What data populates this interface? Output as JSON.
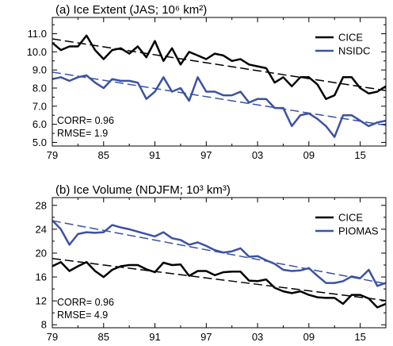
{
  "chart_data": [
    {
      "type": "line",
      "title": "(a) Ice Extent (JAS; 10⁶ km²)",
      "x": [
        1979,
        1980,
        1981,
        1982,
        1983,
        1984,
        1985,
        1986,
        1987,
        1988,
        1989,
        1990,
        1991,
        1992,
        1993,
        1994,
        1995,
        1996,
        1997,
        1998,
        1999,
        2000,
        2001,
        2002,
        2003,
        2004,
        2005,
        2006,
        2007,
        2008,
        2009,
        2010,
        2011,
        2012,
        2013,
        2014,
        2015,
        2016,
        2017,
        2018
      ],
      "xlim": [
        1979,
        2018
      ],
      "x_ticks": [
        1979,
        1985,
        1991,
        1997,
        2003,
        2009,
        2015
      ],
      "x_tick_labels": [
        "79",
        "85",
        "91",
        "97",
        "03",
        "09",
        "15"
      ],
      "ylim": [
        4.8,
        11.9
      ],
      "y_ticks": [
        5,
        6,
        7,
        8,
        9,
        10,
        11
      ],
      "y_tick_labels": [
        "5.0",
        "6.0",
        "7.0",
        "8.0",
        "9.0",
        "10.0",
        "11.0"
      ],
      "series": [
        {
          "name": "CICE",
          "color": "#000000",
          "values": [
            10.5,
            10.1,
            10.3,
            10.3,
            10.9,
            10.1,
            9.6,
            10.1,
            10.2,
            9.9,
            10.3,
            9.7,
            10.6,
            9.5,
            10.2,
            9.3,
            10.0,
            9.8,
            9.6,
            9.9,
            9.8,
            9.5,
            9.6,
            9.3,
            9.2,
            9.1,
            8.3,
            8.6,
            8.1,
            8.6,
            8.6,
            8.2,
            7.4,
            7.6,
            8.6,
            8.6,
            8.0,
            7.7,
            7.8,
            8.1
          ]
        },
        {
          "name": "NSIDC",
          "color": "#3b52a3",
          "values": [
            8.5,
            8.6,
            8.4,
            8.6,
            8.7,
            8.3,
            8.0,
            8.5,
            8.4,
            8.4,
            8.3,
            7.4,
            7.8,
            8.6,
            7.8,
            8.0,
            7.3,
            8.6,
            7.8,
            7.8,
            7.6,
            7.6,
            7.8,
            7.2,
            7.4,
            7.4,
            6.9,
            6.9,
            5.9,
            6.5,
            6.6,
            6.3,
            5.9,
            5.3,
            6.5,
            6.5,
            6.2,
            5.9,
            6.1,
            6.2
          ]
        }
      ],
      "trend_lines": true,
      "legend": "top-right",
      "annotations": [
        "CORR= 0.96",
        "RMSE= 1.9"
      ],
      "grid": false
    },
    {
      "type": "line",
      "title": "(b) Ice Volume (NDJFM; 10³ km³)",
      "x": [
        1979,
        1980,
        1981,
        1982,
        1983,
        1984,
        1985,
        1986,
        1987,
        1988,
        1989,
        1990,
        1991,
        1992,
        1993,
        1994,
        1995,
        1996,
        1997,
        1998,
        1999,
        2000,
        2001,
        2002,
        2003,
        2004,
        2005,
        2006,
        2007,
        2008,
        2009,
        2010,
        2011,
        2012,
        2013,
        2014,
        2015,
        2016,
        2017,
        2018
      ],
      "xlim": [
        1979,
        2018
      ],
      "x_ticks": [
        1979,
        1985,
        1991,
        1997,
        2003,
        2009,
        2015
      ],
      "x_tick_labels": [
        "79",
        "85",
        "91",
        "97",
        "03",
        "09",
        "15"
      ],
      "ylim": [
        7.5,
        29.3
      ],
      "y_ticks": [
        8,
        12,
        16,
        20,
        24,
        28
      ],
      "y_tick_labels": [
        "8",
        "12",
        "16",
        "20",
        "24",
        "28"
      ],
      "series": [
        {
          "name": "CICE",
          "color": "#000000",
          "values": [
            17.8,
            18.5,
            17.0,
            17.8,
            18.5,
            17.0,
            16.0,
            17.2,
            17.8,
            18.0,
            18.0,
            17.3,
            16.8,
            18.4,
            18.0,
            18.1,
            16.2,
            17.0,
            17.0,
            16.3,
            16.8,
            16.9,
            16.9,
            15.4,
            15.3,
            15.6,
            14.2,
            13.6,
            13.3,
            13.6,
            13.0,
            12.6,
            12.5,
            12.5,
            11.5,
            13.0,
            13.0,
            12.4,
            10.9,
            11.5
          ]
        },
        {
          "name": "PIOMAS",
          "color": "#3b52a3",
          "values": [
            25.5,
            24.0,
            21.4,
            23.2,
            23.5,
            23.4,
            23.5,
            24.7,
            24.3,
            24.0,
            23.6,
            23.2,
            22.8,
            23.5,
            22.5,
            22.2,
            21.4,
            21.8,
            21.2,
            20.5,
            20.1,
            20.3,
            20.8,
            19.4,
            19.5,
            18.8,
            18.2,
            17.2,
            17.0,
            17.1,
            17.5,
            16.2,
            15.0,
            15.0,
            15.3,
            16.1,
            15.8,
            17.2,
            14.5,
            15.0
          ]
        }
      ],
      "trend_lines": true,
      "legend": "top-right",
      "annotations": [
        "CORR= 0.96",
        "RMSE= 4.9"
      ],
      "grid": false
    }
  ]
}
